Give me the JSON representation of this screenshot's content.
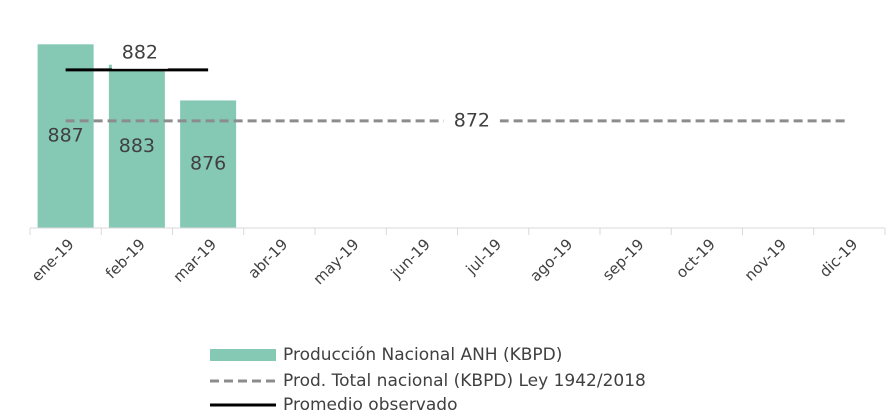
{
  "chart_data": {
    "type": "bar",
    "categories": [
      "ene-19",
      "feb-19",
      "mar-19",
      "abr-19",
      "may-19",
      "jun-19",
      "jul-19",
      "ago-19",
      "sep-19",
      "oct-19",
      "nov-19",
      "dic-19"
    ],
    "series": [
      {
        "name": "Producción Nacional ANH (KBPD)",
        "type": "bar",
        "color": "#85c9b5",
        "values": [
          887,
          883,
          876,
          null,
          null,
          null,
          null,
          null,
          null,
          null,
          null,
          null
        ]
      },
      {
        "name": "Prod. Total nacional (KBPD) Ley 1942/2018",
        "type": "line",
        "dashed": true,
        "color": "#8c8c8c",
        "values": [
          872,
          872,
          872,
          872,
          872,
          872,
          872,
          872,
          872,
          872,
          872,
          872
        ]
      },
      {
        "name": "Promedio observado",
        "type": "line",
        "dashed": false,
        "color": "#000000",
        "values": [
          882,
          882,
          882,
          null,
          null,
          null,
          null,
          null,
          null,
          null,
          null,
          null
        ]
      }
    ],
    "ylim": [
      851,
      890
    ]
  }
}
